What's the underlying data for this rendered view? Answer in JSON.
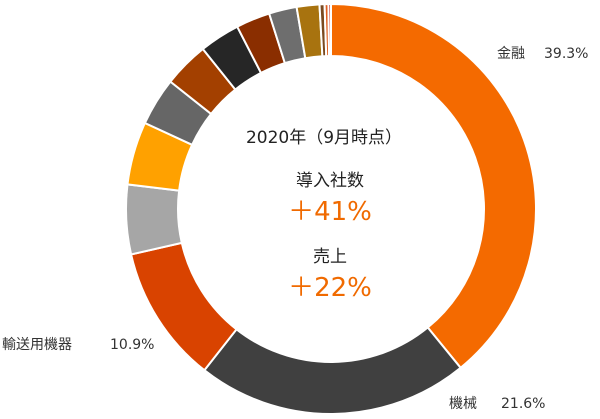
{
  "chart_data": {
    "type": "pie",
    "title": "",
    "center_text": {
      "year": "2020年（9月時点）",
      "metric1_label": "導入社数",
      "metric1_value": "＋41%",
      "metric2_label": "売上",
      "metric2_value": "＋22%"
    },
    "labeled_slices": [
      {
        "name": "金融",
        "value_text": "39.3%"
      },
      {
        "name": "機械",
        "value_text": "21.6%"
      },
      {
        "name": "輸送用機器",
        "value_text": "10.9%"
      }
    ],
    "values": [
      39.3,
      21.6,
      10.9,
      5.5,
      5.0,
      3.8,
      3.6,
      3.2,
      2.7,
      2.2,
      1.8,
      0.4,
      0.3,
      0.2
    ],
    "colors": [
      "#f46a00",
      "#404040",
      "#d94300",
      "#a6a6a6",
      "#ffa100",
      "#666666",
      "#a34000",
      "#262626",
      "#8a2e00",
      "#6e6e6e",
      "#a8730f",
      "#7a4a20",
      "#e06020",
      "#b01010"
    ]
  }
}
